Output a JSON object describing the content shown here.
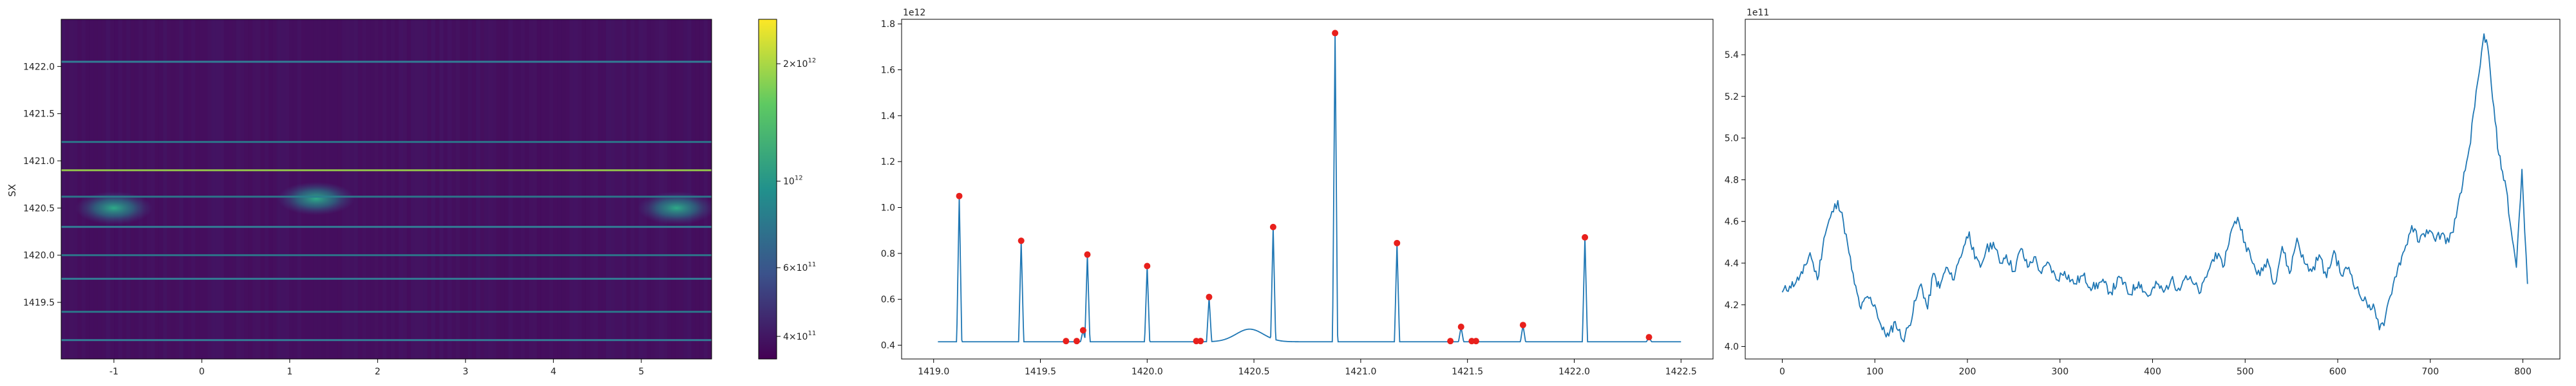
{
  "chart_data": [
    {
      "type": "heatmap",
      "ylabel": "SX",
      "xlabel": "",
      "xlim": [
        -1.6,
        5.8
      ],
      "ylim": [
        1418.9,
        1422.5
      ],
      "x_ticks": [
        "-1",
        "0",
        "1",
        "2",
        "3",
        "4",
        "5"
      ],
      "x_tick_values": [
        -1,
        0,
        1,
        2,
        3,
        4,
        5
      ],
      "y_ticks": [
        "1419.5",
        "1420.0",
        "1420.5",
        "1421.0",
        "1421.5",
        "1422.0"
      ],
      "y_tick_values": [
        1419.5,
        1420.0,
        1420.5,
        1421.0,
        1421.5,
        1422.0
      ],
      "bright_rows": [
        1419.1,
        1419.4,
        1419.75,
        1420.0,
        1420.3,
        1420.62,
        1420.9,
        1421.2,
        1422.05
      ],
      "hotspots": [
        [
          -1.0,
          1420.5
        ],
        [
          1.3,
          1420.6
        ],
        [
          5.4,
          1420.5
        ]
      ],
      "colormap": "viridis",
      "colorbar": {
        "scale": "log",
        "ticks": [
          "$4\\times10^{11}$",
          "$6\\times10^{11}$",
          "$10^{12}$",
          "$2\\times10^{12}$"
        ],
        "tick_values": [
          400000000000.0,
          600000000000.0,
          1000000000000.0,
          2000000000000.0
        ],
        "range": [
          350000000000.0,
          2600000000000.0
        ]
      }
    },
    {
      "type": "line",
      "offset_label": "1e12",
      "xlim": [
        1418.85,
        1422.65
      ],
      "ylim": [
        0.34,
        1.82
      ],
      "x_ticks": [
        "1419.0",
        "1419.5",
        "1420.0",
        "1420.5",
        "1421.0",
        "1421.5",
        "1422.0",
        "1422.5"
      ],
      "x_tick_values": [
        1419.0,
        1419.5,
        1420.0,
        1420.5,
        1421.0,
        1421.5,
        1422.0,
        1422.5
      ],
      "y_ticks": [
        "0.4",
        "0.6",
        "0.8",
        "1.0",
        "1.2",
        "1.4",
        "1.6",
        "1.8"
      ],
      "y_tick_values": [
        0.4,
        0.6,
        0.8,
        1.0,
        1.2,
        1.4,
        1.6,
        1.8
      ],
      "baseline": 0.415,
      "x_start": 1419.02,
      "x_end": 1422.5,
      "bump": {
        "center": 1420.48,
        "width": 0.09,
        "height": 0.055
      },
      "peaks": [
        {
          "x": 1419.12,
          "y": 1.05
        },
        {
          "x": 1419.41,
          "y": 0.855
        },
        {
          "x": 1419.62,
          "y": 0.418
        },
        {
          "x": 1419.67,
          "y": 0.418
        },
        {
          "x": 1419.7,
          "y": 0.465
        },
        {
          "x": 1419.72,
          "y": 0.795
        },
        {
          "x": 1420.0,
          "y": 0.745
        },
        {
          "x": 1420.23,
          "y": 0.418
        },
        {
          "x": 1420.25,
          "y": 0.418
        },
        {
          "x": 1420.29,
          "y": 0.61
        },
        {
          "x": 1420.59,
          "y": 0.915
        },
        {
          "x": 1420.88,
          "y": 1.76
        },
        {
          "x": 1421.17,
          "y": 0.845
        },
        {
          "x": 1421.42,
          "y": 0.418
        },
        {
          "x": 1421.47,
          "y": 0.48
        },
        {
          "x": 1421.52,
          "y": 0.418
        },
        {
          "x": 1421.54,
          "y": 0.418
        },
        {
          "x": 1421.76,
          "y": 0.488
        },
        {
          "x": 1422.05,
          "y": 0.87
        },
        {
          "x": 1422.35,
          "y": 0.435
        }
      ]
    },
    {
      "type": "line",
      "offset_label": "1e11",
      "xlim": [
        -40,
        840
      ],
      "ylim": [
        3.94,
        5.57
      ],
      "x_ticks": [
        "0",
        "100",
        "200",
        "300",
        "400",
        "500",
        "600",
        "700",
        "800"
      ],
      "x_tick_values": [
        0,
        100,
        200,
        300,
        400,
        500,
        600,
        700,
        800
      ],
      "y_ticks": [
        "4.0",
        "4.2",
        "4.4",
        "4.6",
        "4.8",
        "5.0",
        "5.2",
        "5.4"
      ],
      "y_tick_values": [
        4.0,
        4.2,
        4.4,
        4.6,
        4.8,
        5.0,
        5.2,
        5.4
      ],
      "x": [
        0,
        8,
        15,
        22,
        30,
        38,
        45,
        52,
        60,
        66,
        72,
        78,
        85,
        92,
        100,
        108,
        115,
        122,
        130,
        137,
        144,
        150,
        157,
        163,
        170,
        177,
        184,
        190,
        196,
        202,
        208,
        214,
        220,
        228,
        235,
        242,
        250,
        258,
        265,
        272,
        280,
        288,
        296,
        305,
        315,
        325,
        335,
        345,
        355,
        365,
        375,
        385,
        395,
        405,
        412,
        420,
        428,
        436,
        444,
        452,
        460,
        468,
        476,
        484,
        492,
        500,
        508,
        516,
        524,
        532,
        540,
        548,
        556,
        564,
        572,
        580,
        588,
        596,
        604,
        612,
        620,
        628,
        634,
        640,
        645,
        650,
        655,
        660,
        665,
        672,
        680,
        688,
        696,
        704,
        712,
        720,
        728,
        735,
        742,
        748,
        754,
        758,
        762,
        766,
        770,
        774,
        778,
        782,
        786,
        790,
        793,
        796,
        799,
        802,
        805
      ],
      "values": [
        4.26,
        4.29,
        4.31,
        4.35,
        4.45,
        4.32,
        4.52,
        4.62,
        4.7,
        4.6,
        4.45,
        4.3,
        4.18,
        4.24,
        4.2,
        4.08,
        4.05,
        4.12,
        4.03,
        4.1,
        4.22,
        4.3,
        4.18,
        4.35,
        4.28,
        4.38,
        4.32,
        4.4,
        4.48,
        4.55,
        4.42,
        4.38,
        4.46,
        4.5,
        4.4,
        4.44,
        4.36,
        4.47,
        4.38,
        4.43,
        4.35,
        4.4,
        4.32,
        4.36,
        4.3,
        4.34,
        4.28,
        4.31,
        4.26,
        4.33,
        4.25,
        4.31,
        4.24,
        4.3,
        4.26,
        4.32,
        4.28,
        4.34,
        4.3,
        4.26,
        4.36,
        4.45,
        4.38,
        4.54,
        4.62,
        4.5,
        4.4,
        4.34,
        4.42,
        4.3,
        4.48,
        4.35,
        4.52,
        4.4,
        4.36,
        4.44,
        4.33,
        4.46,
        4.34,
        4.38,
        4.28,
        4.22,
        4.2,
        4.18,
        4.08,
        4.1,
        4.22,
        4.3,
        4.38,
        4.46,
        4.58,
        4.5,
        4.56,
        4.52,
        4.54,
        4.5,
        4.62,
        4.78,
        4.95,
        5.15,
        5.35,
        5.5,
        5.44,
        5.25,
        5.08,
        4.92,
        4.84,
        4.76,
        4.6,
        4.48,
        4.38,
        4.62,
        4.85,
        4.55,
        4.3
      ]
    }
  ]
}
